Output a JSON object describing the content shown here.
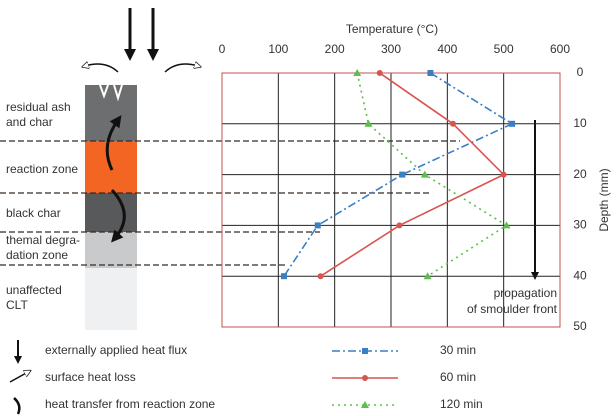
{
  "chart_data": {
    "type": "line",
    "x_label": "Temperature (°C)",
    "y_label": "Depth (mm)",
    "xlim": [
      0,
      600
    ],
    "xticks": [
      0,
      100,
      200,
      300,
      400,
      500,
      600
    ],
    "ylim": [
      0,
      50
    ],
    "yticks": [
      0,
      10,
      20,
      30,
      40,
      50
    ],
    "depth": [
      0,
      10,
      20,
      30,
      40
    ],
    "series": [
      {
        "name": "30 min",
        "color": "#3a7fc4",
        "values": [
          370,
          515,
          320,
          170,
          110
        ]
      },
      {
        "name": "60 min",
        "color": "#d9534f",
        "values": [
          280,
          410,
          500,
          315,
          175
        ]
      },
      {
        "name": "120 min",
        "color": "#5cbf4a",
        "values": [
          240,
          260,
          360,
          505,
          365
        ]
      }
    ],
    "grid": true,
    "annotation": [
      "propagation",
      "of smoulder front"
    ],
    "zones": [
      "residual ash",
      "and char",
      "reaction zone",
      "black char",
      "themal degra-",
      "dation zone",
      "unaffected",
      "CLT"
    ],
    "symbol_legend": [
      "externally applied heat flux",
      "surface heat loss",
      "heat transfer from reaction zone"
    ]
  }
}
